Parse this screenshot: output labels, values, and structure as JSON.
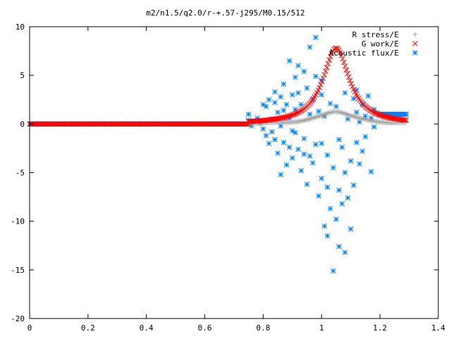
{
  "chart_data": {
    "type": "scatter",
    "title": "m2/n1.5/q2.0/r-+.57-j295/M0.15/512",
    "xlabel": "",
    "ylabel": "",
    "xlim": [
      0,
      1.4
    ],
    "ylim": [
      -20,
      10
    ],
    "x_ticks": [
      0,
      0.2,
      0.4,
      0.6,
      0.8,
      1,
      1.2,
      1.4
    ],
    "y_ticks": [
      -20,
      -15,
      -10,
      -5,
      0,
      5,
      10
    ],
    "x_tick_labels": [
      "0",
      "0.2",
      "0.4",
      "0.6",
      "0.8",
      "1",
      "1.2",
      "1.4"
    ],
    "y_tick_labels": [
      "-20",
      "-15",
      "-10",
      "-5",
      "0",
      "5",
      "10"
    ],
    "grid": false,
    "legend_position": "top-right",
    "series": [
      {
        "name": "R stress/E",
        "marker": "plus",
        "color": "#a0a0a0",
        "segments": [
          {
            "x_start": 0.0,
            "x_end": 0.75,
            "points": 180,
            "y": 0.0
          },
          {
            "x_start": 0.75,
            "x_end": 1.29,
            "points": 130,
            "shape": "peak",
            "base": 0.0,
            "peak_x": 1.05,
            "amp": 1.3,
            "width": 0.07,
            "tail": 0.05
          }
        ]
      },
      {
        "name": "G work/E",
        "marker": "cross",
        "color": "#ff0000",
        "segments": [
          {
            "x_start": 0.0,
            "x_end": 0.75,
            "points": 180,
            "y": 0.0
          },
          {
            "x_start": 0.75,
            "x_end": 1.29,
            "points": 130,
            "shape": "peak",
            "base": 0.0,
            "peak_x": 1.05,
            "amp": 7.8,
            "width": 0.055,
            "tail": 0.0
          }
        ]
      },
      {
        "name": "Acoustic flux/E",
        "marker": "star",
        "color": "#0080ff",
        "segments": [
          {
            "x_start": 0.0,
            "x_end": 0.74,
            "points": 200,
            "y": 0.0
          },
          {
            "x_start": 1.2,
            "x_end": 1.29,
            "points": 22,
            "y": 1.0
          }
        ],
        "points": [
          [
            0.75,
            1.0
          ],
          [
            0.75,
            0.4
          ],
          [
            0.76,
            -0.2
          ],
          [
            0.77,
            0.3
          ],
          [
            0.78,
            0.6
          ],
          [
            0.79,
            0.1
          ],
          [
            0.8,
            2.0
          ],
          [
            0.8,
            -0.5
          ],
          [
            0.81,
            1.8
          ],
          [
            0.81,
            -1.2
          ],
          [
            0.82,
            2.5
          ],
          [
            0.82,
            -2.0
          ],
          [
            0.83,
            0.5
          ],
          [
            0.83,
            -0.8
          ],
          [
            0.84,
            3.3
          ],
          [
            0.84,
            2.2
          ],
          [
            0.84,
            -1.6
          ],
          [
            0.85,
            1.2
          ],
          [
            0.85,
            -3.0
          ],
          [
            0.86,
            2.8
          ],
          [
            0.86,
            -0.2
          ],
          [
            0.87,
            4.1
          ],
          [
            0.87,
            1.4
          ],
          [
            0.87,
            -1.9
          ],
          [
            0.88,
            2.0
          ],
          [
            0.88,
            -4.2
          ],
          [
            0.89,
            6.5
          ],
          [
            0.89,
            0.6
          ],
          [
            0.89,
            -2.4
          ],
          [
            0.9,
            3.0
          ],
          [
            0.9,
            -3.5
          ],
          [
            0.91,
            4.8
          ],
          [
            0.91,
            1.5
          ],
          [
            0.91,
            -0.9
          ],
          [
            0.92,
            3.2
          ],
          [
            0.92,
            -2.6
          ],
          [
            0.93,
            2.0
          ],
          [
            0.93,
            -4.8
          ],
          [
            0.94,
            5.4
          ],
          [
            0.94,
            -1.5
          ],
          [
            0.95,
            3.7
          ],
          [
            0.95,
            -6.2
          ],
          [
            0.96,
            1.0
          ],
          [
            0.96,
            -3.3
          ],
          [
            0.97,
            2.5
          ],
          [
            0.97,
            -4.0
          ],
          [
            0.98,
            4.9
          ],
          [
            0.98,
            -2.1
          ],
          [
            0.99,
            1.3
          ],
          [
            0.99,
            -7.4
          ],
          [
            1.0,
            3.0
          ],
          [
            1.0,
            -5.6
          ],
          [
            1.01,
            0.8
          ],
          [
            1.01,
            -10.5
          ],
          [
            1.02,
            -6.5
          ],
          [
            1.02,
            -3.2
          ],
          [
            1.03,
            2.1
          ],
          [
            1.03,
            -8.7
          ],
          [
            1.04,
            -15.1
          ],
          [
            1.04,
            -4.5
          ],
          [
            1.05,
            -9.8
          ],
          [
            1.05,
            1.8
          ],
          [
            1.06,
            -12.6
          ],
          [
            1.06,
            -6.8
          ],
          [
            1.07,
            -2.4
          ],
          [
            1.07,
            -8.2
          ],
          [
            1.08,
            -13.2
          ],
          [
            1.08,
            -5.0
          ],
          [
            1.09,
            -7.6
          ],
          [
            1.09,
            0.5
          ],
          [
            1.1,
            -10.8
          ],
          [
            1.1,
            -3.8
          ],
          [
            1.11,
            2.6
          ],
          [
            1.11,
            -6.3
          ],
          [
            1.12,
            -1.9
          ],
          [
            1.12,
            1.2
          ],
          [
            1.13,
            -4.1
          ],
          [
            1.13,
            0.2
          ],
          [
            1.14,
            2.0
          ],
          [
            1.14,
            -2.8
          ],
          [
            1.15,
            0.8
          ],
          [
            1.15,
            -1.3
          ],
          [
            1.16,
            2.9
          ],
          [
            1.17,
            0.6
          ],
          [
            1.17,
            -4.9
          ],
          [
            1.18,
            1.5
          ],
          [
            1.18,
            -0.3
          ],
          [
            1.19,
            1.1
          ],
          [
            1.2,
            0.9
          ],
          [
            0.98,
            8.9
          ],
          [
            0.92,
            6.0
          ],
          [
            0.96,
            7.9
          ],
          [
            1.0,
            4.5
          ],
          [
            0.94,
            -3.1
          ],
          [
            1.06,
            -1.6
          ],
          [
            1.02,
            -11.5
          ],
          [
            1.0,
            -2.0
          ],
          [
            0.86,
            -5.2
          ],
          [
            0.9,
            -0.7
          ],
          [
            1.08,
            3.2
          ],
          [
            1.12,
            3.5
          ]
        ]
      }
    ]
  }
}
